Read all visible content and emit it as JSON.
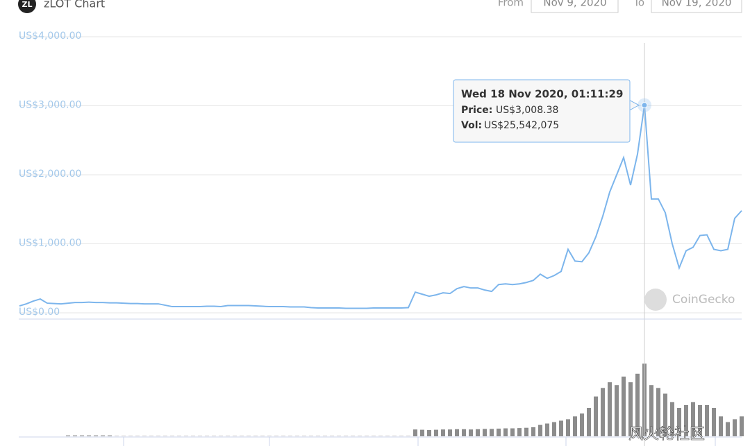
{
  "header": {
    "logo": "ZL",
    "title": "zLOT Chart",
    "from_label": "From",
    "from": "Nov 9, 2020",
    "to_label": "To",
    "to": "Nov 19, 2020"
  },
  "chart_data": {
    "type": "line",
    "color": "#7cb5ec",
    "grid": true,
    "ylim": [
      0,
      4000
    ],
    "yticks": [
      {
        "value": 0,
        "label": "US$0.00"
      },
      {
        "value": 1000,
        "label": "US$1,000.00"
      },
      {
        "value": 2000,
        "label": "US$2,000.00"
      },
      {
        "value": 3000,
        "label": "US$3,000.00"
      },
      {
        "value": 4000,
        "label": "US$4,000.00"
      }
    ],
    "values": [
      100,
      130,
      170,
      200,
      140,
      135,
      130,
      140,
      150,
      150,
      155,
      150,
      150,
      145,
      145,
      140,
      135,
      135,
      130,
      130,
      130,
      110,
      90,
      90,
      90,
      90,
      90,
      95,
      95,
      90,
      105,
      105,
      105,
      105,
      100,
      95,
      90,
      90,
      90,
      85,
      85,
      85,
      75,
      70,
      70,
      70,
      70,
      65,
      65,
      65,
      65,
      70,
      70,
      70,
      70,
      70,
      75,
      300,
      270,
      240,
      260,
      290,
      280,
      350,
      380,
      360,
      360,
      330,
      310,
      410,
      420,
      410,
      420,
      440,
      470,
      560,
      500,
      540,
      600,
      920,
      750,
      740,
      870,
      1100,
      1400,
      1750,
      2000,
      2250,
      1850,
      2300,
      3008.38,
      1650,
      1650,
      1450,
      1000,
      650,
      900,
      950,
      1120,
      1130,
      920,
      900,
      920,
      1370,
      1480
    ],
    "volume": {
      "color": "#8c8c8c",
      "ylim": [
        0,
        30000000
      ],
      "values": [
        0,
        0,
        0,
        0,
        0,
        0,
        0,
        300000,
        300000,
        300000,
        300000,
        300000,
        300000,
        300000,
        100000,
        100000,
        100000,
        100000,
        100000,
        100000,
        100000,
        100000,
        100000,
        100000,
        100000,
        100000,
        100000,
        100000,
        100000,
        100000,
        100000,
        100000,
        100000,
        100000,
        100000,
        100000,
        100000,
        100000,
        100000,
        100000,
        100000,
        100000,
        100000,
        100000,
        100000,
        100000,
        100000,
        100000,
        100000,
        100000,
        100000,
        100000,
        100000,
        100000,
        100000,
        100000,
        100000,
        2400000,
        2300000,
        2200000,
        2300000,
        2400000,
        2400000,
        2500000,
        2500000,
        2400000,
        2500000,
        2600000,
        2600000,
        2700000,
        2800000,
        2800000,
        2900000,
        3000000,
        3200000,
        4000000,
        4500000,
        5000000,
        5500000,
        6000000,
        7000000,
        8000000,
        10000000,
        14000000,
        17000000,
        19000000,
        18000000,
        21000000,
        19000000,
        22000000,
        25542075,
        18000000,
        17000000,
        15000000,
        12000000,
        10000000,
        11000000,
        12000000,
        11000000,
        11000000,
        10000000,
        7000000,
        5000000,
        6000000,
        7000000
      ]
    },
    "tooltip": {
      "title": "Wed 18 Nov 2020, 01:11:29",
      "price_label": "Price:",
      "price": "US$3,008.38",
      "vol_label": "Vol:",
      "vol": "US$25,542,075"
    }
  },
  "watermarks": [
    "CoinGecko",
    "风火轮社区"
  ]
}
